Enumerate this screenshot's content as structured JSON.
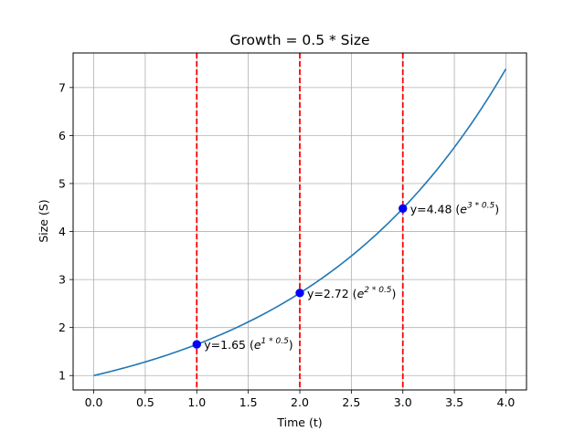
{
  "chart_data": {
    "type": "line",
    "title": "Growth = 0.5 * Size",
    "xlabel": "Time (t)",
    "ylabel": "Size (S)",
    "xlim": [
      -0.2,
      4.2
    ],
    "ylim": [
      0.7,
      7.72
    ],
    "xticks": [
      0.0,
      0.5,
      1.0,
      1.5,
      2.0,
      2.5,
      3.0,
      3.5,
      4.0
    ],
    "xtick_labels": [
      "0.0",
      "0.5",
      "1.0",
      "1.5",
      "2.0",
      "2.5",
      "3.0",
      "3.5",
      "4.0"
    ],
    "yticks": [
      1,
      2,
      3,
      4,
      5,
      6,
      7
    ],
    "ytick_labels": [
      "1",
      "2",
      "3",
      "4",
      "5",
      "6",
      "7"
    ],
    "grid": true,
    "series": [
      {
        "function": "exp(0.5*t)",
        "x_range": [
          0,
          4
        ],
        "color": "#1f77b4"
      }
    ],
    "vertical_lines": [
      {
        "x": 1,
        "color": "#ff0000",
        "style": "dashed"
      },
      {
        "x": 2,
        "color": "#ff0000",
        "style": "dashed"
      },
      {
        "x": 3,
        "color": "#ff0000",
        "style": "dashed"
      }
    ],
    "points": [
      {
        "x": 1,
        "y": 1.65,
        "color": "#0000ff",
        "label": "y=1.65 (",
        "exp_base": "e",
        "exp_sup": "1 * 0.5",
        "label_end": ")"
      },
      {
        "x": 2,
        "y": 2.72,
        "color": "#0000ff",
        "label": "y=2.72 (",
        "exp_base": "e",
        "exp_sup": "2 * 0.5",
        "label_end": ")"
      },
      {
        "x": 3,
        "y": 4.48,
        "color": "#0000ff",
        "label": "y=4.48 (",
        "exp_base": "e",
        "exp_sup": "3 * 0.5",
        "label_end": ")"
      }
    ]
  }
}
